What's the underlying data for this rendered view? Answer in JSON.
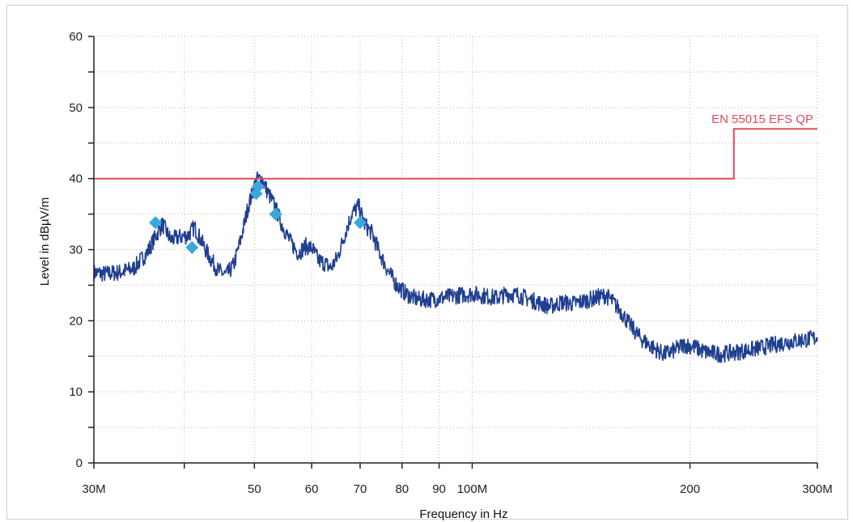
{
  "chart_data": {
    "type": "line",
    "title": "",
    "xlabel": "Frequency in Hz",
    "ylabel": "Level in dBµV/m",
    "x_scale": "log",
    "xlim": [
      30000000,
      300000000
    ],
    "ylim": [
      0,
      60
    ],
    "grid": true,
    "y_ticks": [
      {
        "value": 0,
        "label": "0"
      },
      {
        "value": 10,
        "label": "10"
      },
      {
        "value": 20,
        "label": "20"
      },
      {
        "value": 30,
        "label": "30"
      },
      {
        "value": 40,
        "label": "40"
      },
      {
        "value": 50,
        "label": "50"
      },
      {
        "value": 60,
        "label": "60"
      }
    ],
    "x_ticks": [
      {
        "value": 30000000,
        "label": "30M"
      },
      {
        "value": 40000000,
        "label": ""
      },
      {
        "value": 50000000,
        "label": "50"
      },
      {
        "value": 60000000,
        "label": "60"
      },
      {
        "value": 70000000,
        "label": "70"
      },
      {
        "value": 80000000,
        "label": "80"
      },
      {
        "value": 90000000,
        "label": "90"
      },
      {
        "value": 100000000,
        "label": "100M"
      },
      {
        "value": 200000000,
        "label": "200"
      },
      {
        "value": 300000000,
        "label": "300M"
      }
    ],
    "series": [
      {
        "color": "#1f3f8f",
        "x": [
          30000000,
          31000000,
          32500000,
          34000000,
          35500000,
          36500000,
          37300000,
          38300000,
          39500000,
          40500000,
          41300000,
          42200000,
          43200000,
          44500000,
          45700000,
          46800000,
          47900000,
          49000000,
          50300000,
          51200000,
          52100000,
          53300000,
          54600000,
          56000000,
          57500000,
          58900000,
          60100000,
          61300000,
          62500000,
          63800000,
          65200000,
          66600000,
          68200000,
          69700000,
          71000000,
          72700000,
          74500000,
          76500000,
          78700000,
          81000000,
          84000000,
          88000000,
          92000000,
          96000000,
          100000000,
          104000000,
          108000000,
          112000000,
          116000000,
          120000000,
          124000000,
          128000000,
          133000000,
          138000000,
          143000000,
          148000000,
          153000000,
          156000000,
          160000000,
          165000000,
          171000000,
          178000000,
          184000000,
          190000000,
          196000000,
          202000000,
          210000000,
          220000000,
          232000000,
          245000000,
          258000000,
          272000000,
          286000000,
          300000000
        ],
        "y": [
          26.8,
          26.6,
          26.8,
          27.3,
          29.5,
          31.8,
          33.6,
          31.4,
          31.8,
          32.0,
          33.2,
          31.3,
          29.2,
          27.1,
          26.4,
          27.8,
          31.5,
          36.0,
          39.8,
          40.0,
          38.2,
          36.2,
          33.5,
          31.2,
          29.5,
          30.5,
          30.2,
          28.5,
          28.1,
          27.4,
          29.0,
          32.0,
          35.1,
          36.1,
          33.6,
          32.3,
          29.5,
          27.0,
          25.0,
          23.8,
          23.0,
          23.0,
          23.3,
          23.6,
          23.8,
          23.5,
          23.2,
          23.8,
          23.6,
          23.0,
          22.5,
          22.0,
          22.6,
          22.4,
          22.8,
          23.2,
          23.6,
          22.8,
          21.5,
          19.5,
          17.5,
          16.2,
          15.3,
          15.8,
          16.6,
          16.4,
          15.6,
          15.3,
          15.6,
          16.0,
          16.5,
          17.0,
          17.3,
          17.6
        ]
      },
      {
        "name": "EN 55015 EFS QP",
        "color": "#e04a5e",
        "x": [
          30000000,
          230000000,
          230000000,
          300000000
        ],
        "y": [
          40,
          40,
          47,
          47
        ]
      }
    ],
    "markers": {
      "color": "#3aa8dc",
      "x": [
        36500000,
        41000000,
        50300000,
        50600000,
        53500000,
        70000000
      ],
      "y": [
        33.8,
        30.3,
        37.9,
        38.9,
        35.0,
        33.8
      ]
    }
  }
}
